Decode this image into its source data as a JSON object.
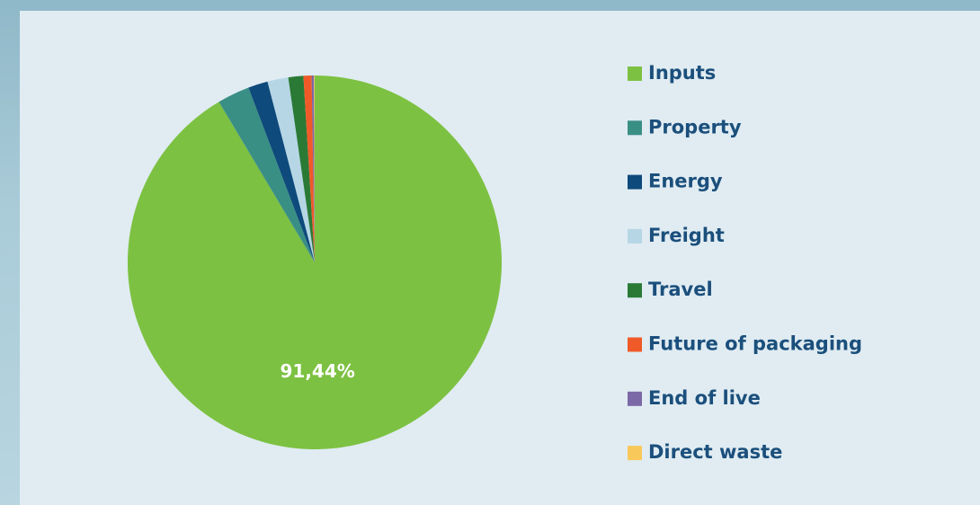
{
  "chart_data": {
    "type": "pie",
    "categories": [
      "Inputs",
      "Property",
      "Energy",
      "Freight",
      "Travel",
      "Future of packaging",
      "End of live",
      "Direct waste"
    ],
    "values": [
      91.44,
      2.8,
      1.7,
      1.8,
      1.3,
      0.7,
      0.2,
      0.06
    ],
    "value_labels": [
      "91,44%",
      null,
      null,
      null,
      null,
      null,
      null,
      null
    ],
    "colors": [
      "#7dc142",
      "#3a8f85",
      "#0e4a7b",
      "#b6d6e5",
      "#2a7a36",
      "#f05a28",
      "#7b68a6",
      "#f9c85a"
    ],
    "legend": "right"
  }
}
